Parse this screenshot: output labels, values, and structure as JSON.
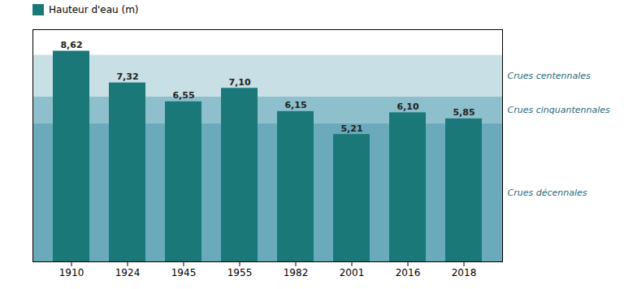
{
  "chart_data": {
    "type": "bar",
    "categories": [
      "1910",
      "1924",
      "1945",
      "1955",
      "1982",
      "2001",
      "2016",
      "2018"
    ],
    "series": [
      {
        "name": "Hauteur d'eau (m)",
        "color": "#1a7878",
        "values": [
          8.62,
          7.32,
          6.55,
          7.1,
          6.15,
          5.21,
          6.1,
          5.85
        ],
        "value_labels": [
          "8,62",
          "7,32",
          "6,55",
          "7,10",
          "6,15",
          "5,21",
          "6,10",
          "5,85"
        ]
      }
    ],
    "ylim": [
      0,
      9.5
    ],
    "data_labels": true,
    "tick_labels": "x",
    "legend": "top",
    "zones": [
      {
        "label": "Crues décennales",
        "from": 0,
        "to": 5.65,
        "color": "#6aaabb"
      },
      {
        "label": "Crues cinquantennales",
        "from": 5.65,
        "to": 6.75,
        "color": "#8ebfcc"
      },
      {
        "label": "Crues centennales",
        "from": 6.75,
        "to": 8.45,
        "color": "#c8dfe6"
      }
    ]
  }
}
